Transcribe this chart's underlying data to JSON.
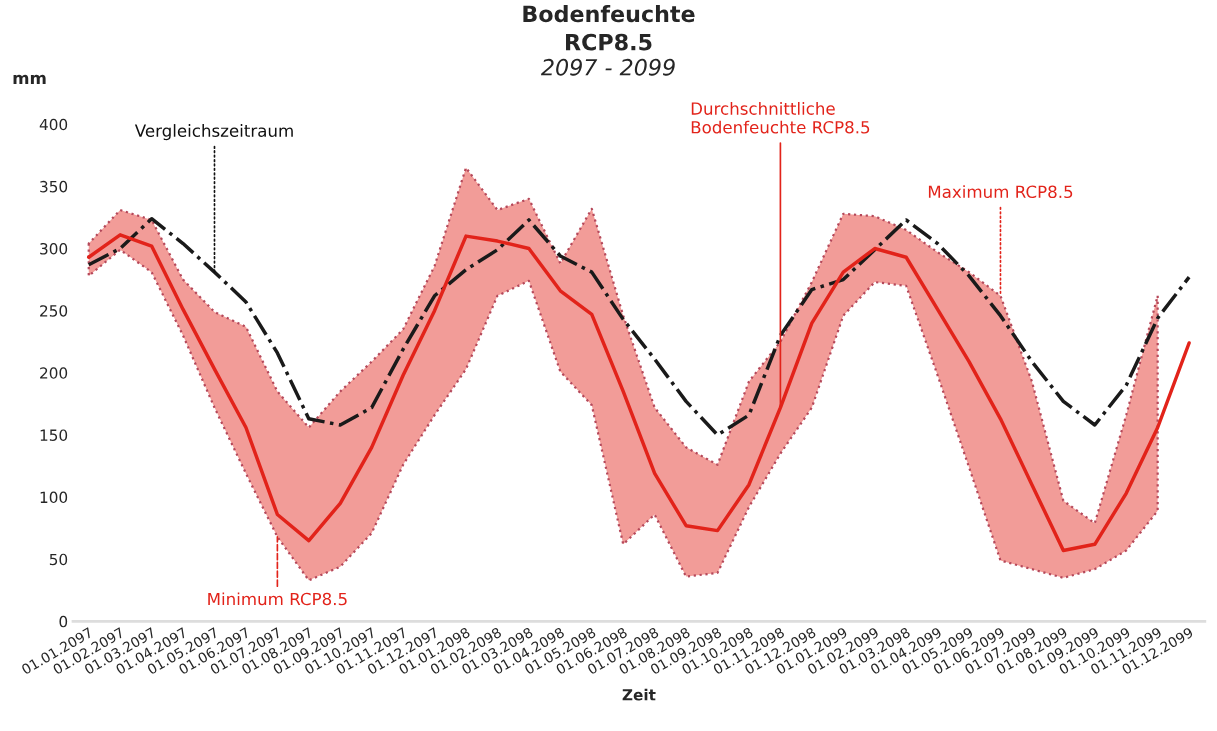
{
  "chart_data": {
    "type": "line",
    "title": "Bodenfeuchte\nRCP8.5",
    "subtitle": "2097 - 2099",
    "xlabel": "Zeit",
    "ylabel": "mm",
    "categories": [
      "01.01.2097",
      "01.02.2097",
      "01.03.2097",
      "01.04.2097",
      "01.05.2097",
      "01.06.2097",
      "01.07.2097",
      "01.08.2097",
      "01.09.2097",
      "01.10.2097",
      "01.11.2097",
      "01.12.2097",
      "01.01.2098",
      "01.02.2098",
      "01.03.2098",
      "01.04.2098",
      "01.05.2098",
      "01.06.2098",
      "01.07.2098",
      "01.08.2098",
      "01.09.2098",
      "01.10.2098",
      "01.11.2098",
      "01.12.2098",
      "01.01.2099",
      "01.02.2099",
      "01.03.2098",
      "01.04.2099",
      "01.05.2099",
      "01.06.2099",
      "01.07.2099",
      "01.08.2099",
      "01.09.2099",
      "01.10.2099",
      "01.11.2099",
      "01.12.2099"
    ],
    "series": [
      {
        "color": "#1a1a1a",
        "line_style": "dashdot",
        "values": [
          287,
          300,
          324,
          304,
          281,
          257,
          216,
          163,
          158,
          172,
          219,
          262,
          283,
          299,
          323,
          294,
          281,
          243,
          211,
          177,
          150,
          166,
          230,
          267,
          275,
          299,
          323,
          304,
          278,
          246,
          209,
          177,
          158,
          190,
          244,
          277
        ]
      },
      {
        "color": "#e2231a",
        "line_style": "solid",
        "values": [
          293,
          311,
          302,
          251,
          203,
          156,
          86,
          65,
          95,
          140,
          198,
          250,
          310,
          306,
          300,
          266,
          247,
          185,
          119,
          77,
          73,
          110,
          172,
          240,
          281,
          300,
          293,
          251,
          209,
          163,
          110,
          57,
          62,
          103,
          156,
          224
        ],
        "lower": [
          278,
          299,
          281,
          230,
          172,
          119,
          68,
          33,
          44,
          71,
          126,
          166,
          203,
          262,
          274,
          201,
          174,
          62,
          86,
          36,
          39,
          92,
          135,
          172,
          246,
          273,
          270,
          198,
          124,
          49,
          42,
          35,
          42,
          57,
          89,
          null
        ],
        "upper": [
          304,
          331,
          323,
          275,
          249,
          237,
          185,
          156,
          185,
          209,
          235,
          286,
          365,
          331,
          340,
          288,
          332,
          246,
          172,
          140,
          126,
          193,
          225,
          273,
          328,
          326,
          315,
          297,
          281,
          262,
          193,
          97,
          79,
          166,
          262,
          null
        ]
      }
    ],
    "ylim": [
      0,
      400
    ],
    "yticks": [
      0,
      50,
      100,
      150,
      200,
      250,
      300,
      350,
      400
    ],
    "grid": false,
    "legend": false,
    "marker": "none",
    "annotations": [
      {
        "text": "Vergleichszeitraum",
        "x": "01.05.2097",
        "y": 281
      },
      {
        "text": "Minimum RCP8.5",
        "x": "01.07.2097",
        "y": 68
      },
      {
        "text": "Durchschnittliche\nBodenfeuchte RCP8.5",
        "x": "01.11.2098",
        "y": 172
      },
      {
        "text": "Maximum RCP8.5",
        "x": "01.06.2099",
        "y": 262
      }
    ]
  }
}
